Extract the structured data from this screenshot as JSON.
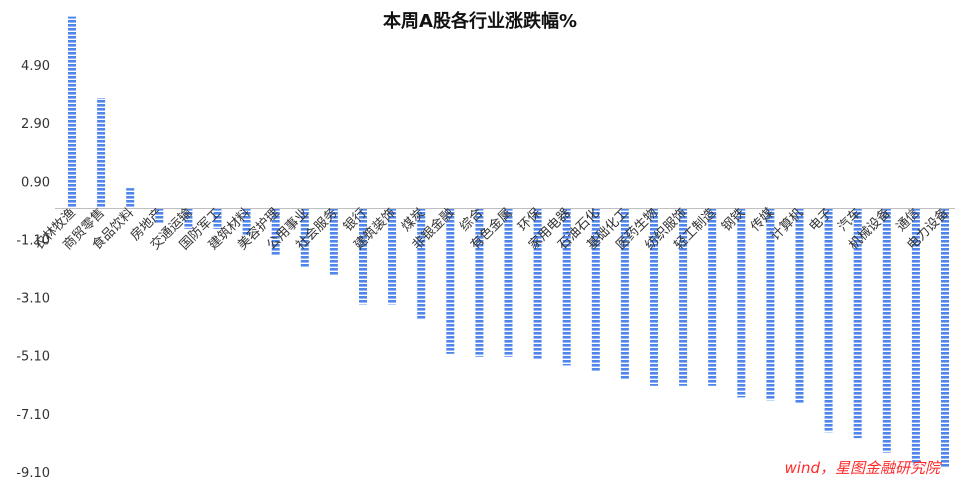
{
  "chart_data": {
    "type": "bar",
    "title": "本周A股各行业涨跌幅%",
    "source": "wind，星图金融研究院",
    "categories": [
      "农林牧渔",
      "商贸零售",
      "食品饮料",
      "房地产",
      "交通运输",
      "国防军工",
      "建筑材料",
      "美容护理",
      "公用事业",
      "社会服务",
      "银行",
      "建筑装饰",
      "煤炭",
      "非银金融",
      "综合",
      "有色金属",
      "环保",
      "家用电器",
      "石油石化",
      "基础化工",
      "医药生物",
      "纺织服饰",
      "轻工制造",
      "钢铁",
      "传媒",
      "计算机",
      "电子",
      "汽车",
      "机械设备",
      "通信",
      "电力设备"
    ],
    "values": [
      6.6,
      3.8,
      0.7,
      -0.5,
      -0.7,
      -0.7,
      -0.9,
      -1.6,
      -2.0,
      -2.3,
      -3.3,
      -3.3,
      -3.8,
      -5.0,
      -5.1,
      -5.1,
      -5.2,
      -5.4,
      -5.6,
      -5.9,
      -6.1,
      -6.1,
      -6.1,
      -6.5,
      -6.6,
      -6.7,
      -7.7,
      -7.9,
      -8.4,
      -8.8,
      -8.9
    ],
    "yticks": [
      "4.90",
      "2.90",
      "0.90",
      "-1.10",
      "-3.10",
      "-5.10",
      "-7.10",
      "-9.10"
    ],
    "ylim": [
      -9.1,
      7.0
    ],
    "grid": false,
    "bar_color": "#4f86ec"
  }
}
